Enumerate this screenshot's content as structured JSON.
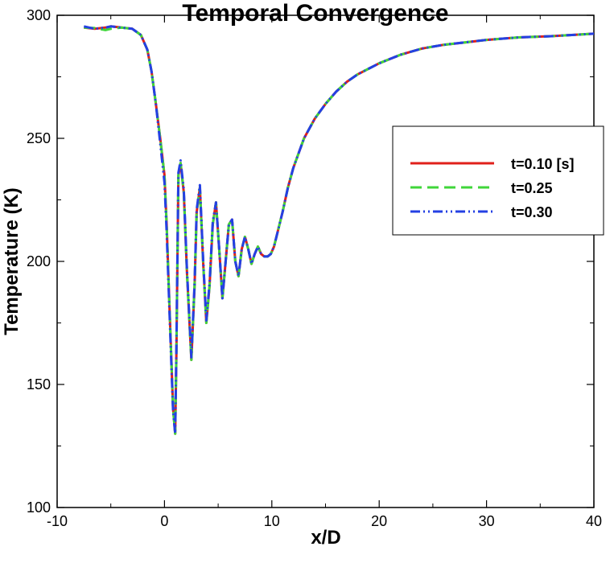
{
  "chart_data": {
    "type": "line",
    "title": "Temporal Convergence",
    "xlabel": "x/D",
    "ylabel": "Temperature (K)",
    "xlim": [
      -10,
      40
    ],
    "ylim": [
      100,
      300
    ],
    "xticks": [
      -10,
      0,
      10,
      20,
      30,
      40
    ],
    "yticks": [
      100,
      150,
      200,
      250,
      300
    ],
    "grid": false,
    "legend_position": "upper-right",
    "series": [
      {
        "name": "t=0.10 [s]",
        "color": "#e0201b",
        "dash": "solid",
        "x": [
          -7.5,
          -6.5,
          -5.5,
          -5.0,
          -4.0,
          -3.0,
          -2.2,
          -1.6,
          -1.2,
          -0.8,
          -0.4,
          0.0,
          0.2,
          0.4,
          0.6,
          0.8,
          1.0,
          1.1,
          1.3,
          1.5,
          1.8,
          2.1,
          2.5,
          2.8,
          3.0,
          3.3,
          3.6,
          3.9,
          4.2,
          4.5,
          4.8,
          5.1,
          5.4,
          5.7,
          6.0,
          6.3,
          6.6,
          6.9,
          7.2,
          7.5,
          7.8,
          8.1,
          8.4,
          8.7,
          9.0,
          9.3,
          9.6,
          9.9,
          10.2,
          10.6,
          11.0,
          11.5,
          12.0,
          13.0,
          14.0,
          15.0,
          16.0,
          17.0,
          18.0,
          20.0,
          22.0,
          24.0,
          26.0,
          28.0,
          30.0,
          33.0,
          36.0,
          40.0
        ],
        "y": [
          295,
          294.5,
          295,
          295.5,
          295,
          294.5,
          292,
          286,
          277,
          264,
          250,
          235,
          215,
          190,
          165,
          140,
          130,
          160,
          235,
          240,
          228,
          195,
          160,
          190,
          220,
          230,
          200,
          175,
          190,
          215,
          224,
          205,
          185,
          200,
          215,
          217,
          200,
          194,
          205,
          210,
          205,
          199,
          203,
          206,
          203,
          202,
          202,
          203,
          206,
          213,
          220,
          230,
          238,
          250,
          258,
          264,
          269,
          273,
          276,
          280.5,
          284,
          286.5,
          288,
          289,
          290,
          291,
          291.5,
          292.5
        ]
      },
      {
        "name": "t=0.25",
        "color": "#3fd63a",
        "dash": "14,7",
        "x": [
          -7.5,
          -6.5,
          -5.5,
          -5.0,
          -4.0,
          -3.0,
          -2.2,
          -1.6,
          -1.2,
          -0.8,
          -0.4,
          0.0,
          0.2,
          0.4,
          0.6,
          0.8,
          1.0,
          1.1,
          1.3,
          1.5,
          1.8,
          2.1,
          2.5,
          2.8,
          3.0,
          3.3,
          3.6,
          3.9,
          4.2,
          4.5,
          4.8,
          5.1,
          5.4,
          5.7,
          6.0,
          6.3,
          6.6,
          6.9,
          7.2,
          7.5,
          7.8,
          8.1,
          8.4,
          8.7,
          9.0,
          9.3,
          9.6,
          9.9,
          10.2,
          10.6,
          11.0,
          11.5,
          12.0,
          13.0,
          14.0,
          15.0,
          16.0,
          17.0,
          18.0,
          20.0,
          22.0,
          24.0,
          26.0,
          28.0,
          30.0,
          33.0,
          36.0,
          40.0
        ],
        "y": [
          295,
          294.8,
          294,
          294.5,
          295,
          294.5,
          292,
          286,
          277,
          264,
          250,
          235,
          215,
          190,
          165,
          140,
          130,
          160,
          235,
          240,
          228,
          195,
          160,
          190,
          220,
          230,
          200,
          175,
          190,
          215,
          224,
          205,
          185,
          200,
          215,
          217,
          200,
          194,
          205,
          210,
          205,
          199,
          203,
          206,
          203,
          202,
          202,
          203,
          206,
          213,
          220,
          230,
          238,
          250,
          258,
          264,
          269,
          273,
          276,
          280.5,
          284,
          286.5,
          288,
          289,
          290,
          291,
          291.5,
          292.5
        ]
      },
      {
        "name": "t=0.30",
        "color": "#2440e3",
        "dash": "12,4,2,4,2,4",
        "x": [
          -7.5,
          -6.5,
          -5.5,
          -5.0,
          -4.0,
          -3.0,
          -2.2,
          -1.6,
          -1.2,
          -0.8,
          -0.4,
          0.0,
          0.2,
          0.4,
          0.6,
          0.8,
          1.0,
          1.1,
          1.3,
          1.5,
          1.8,
          2.1,
          2.5,
          2.8,
          3.0,
          3.3,
          3.6,
          3.9,
          4.2,
          4.5,
          4.8,
          5.1,
          5.4,
          5.7,
          6.0,
          6.3,
          6.6,
          6.9,
          7.2,
          7.5,
          7.8,
          8.1,
          8.4,
          8.7,
          9.0,
          9.3,
          9.6,
          9.9,
          10.2,
          10.6,
          11.0,
          11.5,
          12.0,
          13.0,
          14.0,
          15.0,
          16.0,
          17.0,
          18.0,
          20.0,
          22.0,
          24.0,
          26.0,
          28.0,
          30.0,
          33.0,
          36.0,
          40.0
        ],
        "y": [
          295.5,
          294.5,
          295,
          295.5,
          295,
          294.5,
          292,
          286,
          277,
          264,
          248,
          232,
          212,
          188,
          163,
          139,
          130,
          162,
          236,
          241,
          229,
          196,
          161,
          191,
          221,
          231,
          201,
          176,
          191,
          216,
          224,
          205,
          185,
          200,
          215,
          217,
          200,
          194,
          205,
          210,
          205,
          199,
          203,
          206,
          203,
          202,
          202,
          203,
          206,
          213,
          220,
          230,
          238,
          250,
          258,
          264,
          269,
          273,
          276,
          280.5,
          284,
          286.5,
          288,
          289,
          290,
          291,
          291.5,
          292.5
        ]
      }
    ]
  }
}
